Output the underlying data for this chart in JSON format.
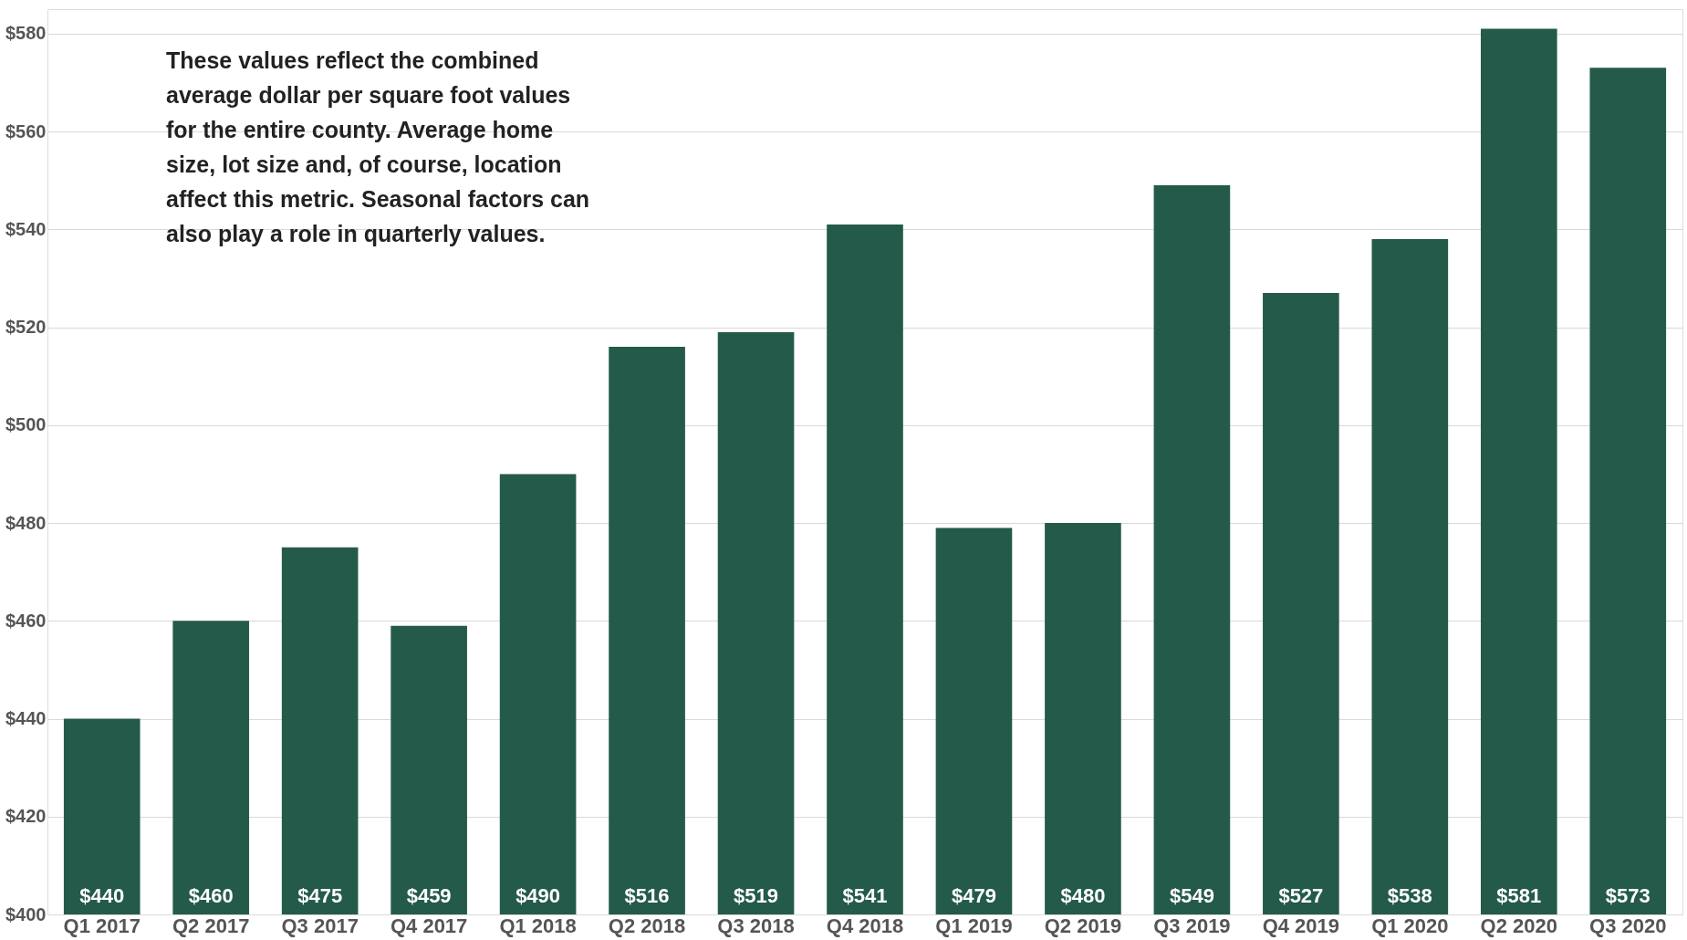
{
  "chart_data": {
    "type": "bar",
    "categories": [
      "Q1 2017",
      "Q2 2017",
      "Q3 2017",
      "Q4 2017",
      "Q1 2018",
      "Q2 2018",
      "Q3 2018",
      "Q4 2018",
      "Q1 2019",
      "Q2 2019",
      "Q3 2019",
      "Q4 2019",
      "Q1 2020",
      "Q2 2020",
      "Q3 2020"
    ],
    "values": [
      440,
      460,
      475,
      459,
      490,
      516,
      519,
      541,
      479,
      480,
      549,
      527,
      538,
      581,
      573
    ],
    "value_labels": [
      "$440",
      "$460",
      "$475",
      "$459",
      "$490",
      "$516",
      "$519",
      "$541",
      "$479",
      "$480",
      "$549",
      "$527",
      "$538",
      "$581",
      "$573"
    ],
    "color": "#245a4a",
    "ylim": [
      400,
      585
    ],
    "yticks": [
      {
        "value": 400,
        "label": "$400"
      },
      {
        "value": 420,
        "label": "$420"
      },
      {
        "value": 440,
        "label": "$440"
      },
      {
        "value": 460,
        "label": "$460"
      },
      {
        "value": 480,
        "label": "$480"
      },
      {
        "value": 500,
        "label": "$500"
      },
      {
        "value": 520,
        "label": "$520"
      },
      {
        "value": 540,
        "label": "$540"
      },
      {
        "value": 560,
        "label": "$560"
      },
      {
        "value": 580,
        "label": "$580"
      }
    ],
    "grid": "y",
    "annotations": [
      "These values reflect the combined average dollar per square foot values for the entire county. Average home size, lot size and, of course, location affect this metric. Seasonal factors can also play a role in quarterly values."
    ]
  }
}
